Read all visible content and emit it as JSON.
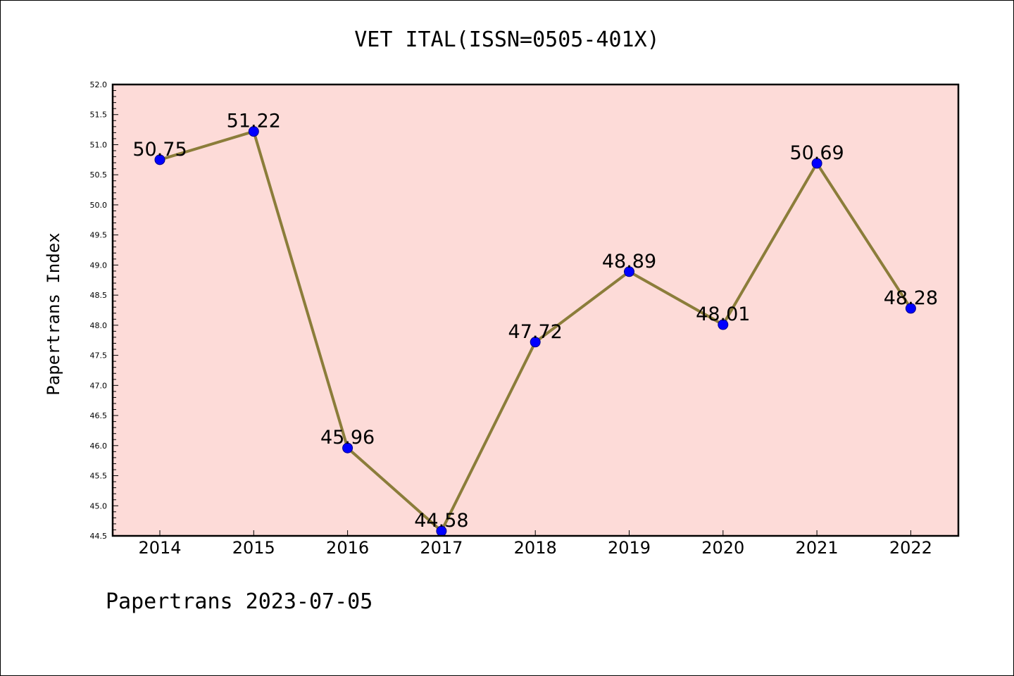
{
  "chart_data": {
    "type": "line",
    "title": "VET ITAL(ISSN=0505-401X)",
    "ylabel": "Papertrans Index",
    "xlabel": "",
    "categories": [
      "2014",
      "2015",
      "2016",
      "2017",
      "2018",
      "2019",
      "2020",
      "2021",
      "2022"
    ],
    "values": [
      50.75,
      51.22,
      45.96,
      44.58,
      47.72,
      48.89,
      48.01,
      50.69,
      48.28
    ],
    "value_labels": [
      "50.75",
      "51.22",
      "45.96",
      "44.58",
      "47.72",
      "48.89",
      "48.01",
      "50.69",
      "48.28"
    ],
    "ylim": [
      44.5,
      52.0
    ],
    "yticks": [
      "44.5",
      "45.0",
      "45.5",
      "46.0",
      "46.5",
      "47.0",
      "47.5",
      "48.0",
      "48.5",
      "49.0",
      "49.5",
      "50.0",
      "50.5",
      "51.0",
      "51.5",
      "52.0"
    ],
    "grid": false,
    "legend": "none",
    "colors": {
      "plot_background": "#fddbd8",
      "line": "#8b7d3a",
      "marker": "#0000ff",
      "marker_edge": "#00008b"
    }
  },
  "footer": "Papertrans 2023-07-05"
}
